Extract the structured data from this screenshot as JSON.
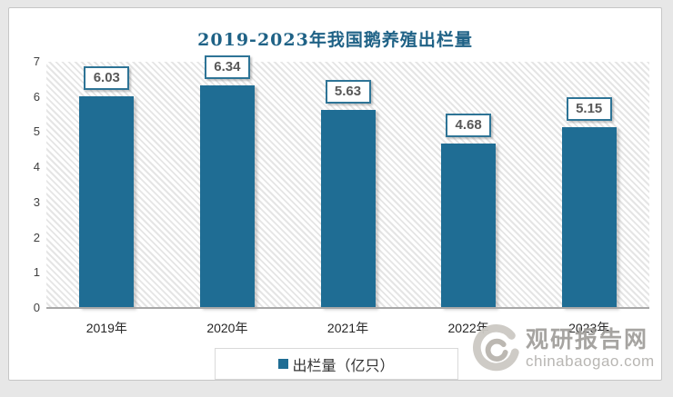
{
  "chart_data": {
    "type": "bar",
    "title": "2019-2023年我国鹅养殖出栏量",
    "categories": [
      "2019年",
      "2020年",
      "2021年",
      "2022年",
      "2023年"
    ],
    "values": [
      6.03,
      6.34,
      5.63,
      4.68,
      5.15
    ],
    "data_labels": [
      "6.03",
      "6.34",
      "5.63",
      "4.68",
      "5.15"
    ],
    "series_name": "出栏量（亿只）",
    "xlabel": "",
    "ylabel": "",
    "ylim": [
      0,
      7
    ],
    "yticks": [
      0,
      1,
      2,
      3,
      4,
      5,
      6,
      7
    ],
    "grid": false,
    "legend_position": "bottom",
    "bar_color": "#1f6d94",
    "title_color": "#1f6286",
    "label_box_border_color": "#2e7496",
    "plot_hatch": "light-diagonal-stripes"
  },
  "legend": {
    "marker": "square",
    "label": "出栏量（亿只）"
  },
  "watermark": {
    "site_name": "观研报告网",
    "domain": "chinabaogao.com"
  }
}
